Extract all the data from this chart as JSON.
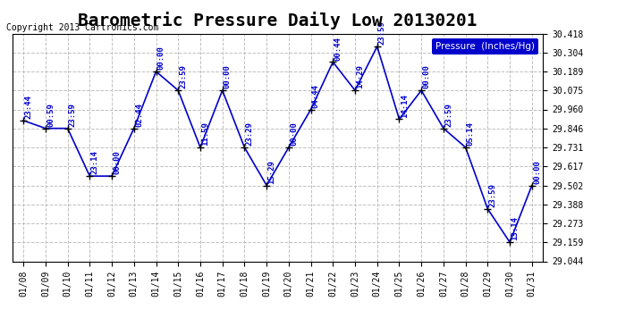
{
  "title": "Barometric Pressure Daily Low 20130201",
  "copyright": "Copyright 2013 Cartronics.com",
  "legend_label": "Pressure  (Inches/Hg)",
  "dates": [
    "01/08",
    "01/09",
    "01/10",
    "01/11",
    "01/12",
    "01/13",
    "01/14",
    "01/15",
    "01/16",
    "01/17",
    "01/18",
    "01/19",
    "01/20",
    "01/21",
    "01/22",
    "01/23",
    "01/24",
    "01/25",
    "01/26",
    "01/27",
    "01/28",
    "01/29",
    "01/30",
    "01/31"
  ],
  "pressures": [
    29.893,
    29.846,
    29.846,
    29.558,
    29.558,
    29.846,
    30.189,
    30.075,
    29.731,
    30.075,
    29.731,
    29.502,
    29.731,
    29.96,
    30.246,
    30.075,
    30.34,
    29.901,
    30.075,
    29.846,
    29.731,
    29.36,
    29.159,
    29.502
  ],
  "time_labels": [
    "23:44",
    "00:59",
    "23:59",
    "23:14",
    "00:00",
    "02:44",
    "00:00",
    "23:59",
    "11:59",
    "00:00",
    "23:29",
    "15:29",
    "00:00",
    "04:44",
    "00:44",
    "14:29",
    "23:59",
    "14:14",
    "00:00",
    "23:59",
    "05:14",
    "23:59",
    "13:14",
    "00:00"
  ],
  "ylim": [
    29.044,
    30.418
  ],
  "yticks": [
    29.044,
    29.159,
    29.273,
    29.388,
    29.502,
    29.617,
    29.731,
    29.846,
    29.96,
    30.075,
    30.189,
    30.304,
    30.418
  ],
  "line_color": "#0000CC",
  "marker_color": "#000000",
  "bg_color": "#ffffff",
  "grid_color": "#c0c0c0",
  "title_fontsize": 14,
  "label_fontsize": 8,
  "legend_bg": "#0000CC",
  "legend_fg": "#ffffff"
}
